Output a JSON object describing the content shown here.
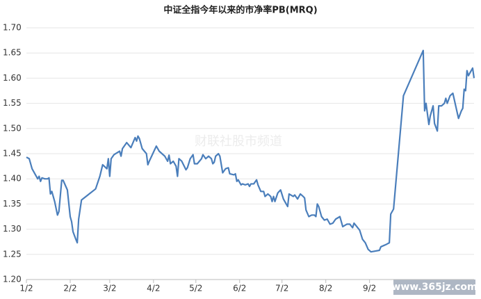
{
  "chart_data": {
    "type": "line",
    "title": "中证全指今年以来的市净率PB(MRQ)",
    "watermark": "财联社股市频道",
    "corner_watermark": "www.365jz.com",
    "x": [
      0,
      2,
      4,
      7,
      8,
      9,
      10,
      11,
      13,
      15,
      16,
      17,
      18,
      20,
      22,
      23,
      25,
      26,
      29,
      31,
      32,
      33,
      35,
      36,
      37,
      39,
      49,
      52,
      54,
      57,
      58,
      59,
      60,
      62,
      66,
      67,
      68,
      71,
      74,
      77,
      78,
      79,
      80,
      82,
      85,
      86,
      87,
      92,
      94,
      98,
      100,
      101,
      102,
      104,
      106,
      107,
      108,
      110,
      113,
      114,
      116,
      118,
      119,
      121,
      124,
      125,
      127,
      129,
      131,
      132,
      133,
      134,
      136,
      137,
      139,
      141,
      143,
      144,
      147,
      148,
      149,
      150,
      152,
      153,
      155,
      157,
      158,
      159,
      161,
      163,
      164,
      166,
      168,
      169,
      171,
      173,
      174,
      175,
      176,
      178,
      180,
      182,
      184,
      185,
      186,
      189,
      190,
      192,
      194,
      196,
      197,
      198,
      200,
      202,
      204,
      205,
      206,
      207,
      209,
      211,
      213,
      215,
      217,
      219,
      222,
      224,
      227,
      229,
      231,
      232,
      234,
      236,
      238,
      240,
      242,
      244,
      250,
      251,
      255,
      257,
      258,
      260,
      267,
      281,
      282,
      283,
      285,
      286,
      288,
      289,
      291,
      292,
      294,
      296,
      297,
      298,
      300,
      302,
      304,
      306,
      308,
      309,
      310,
      311,
      312,
      313,
      316,
      317
    ],
    "series": [
      {
        "name": "市净率PB(MRQ)",
        "color": "#4a7ebb",
        "values": [
          1.443,
          1.44,
          1.42,
          1.405,
          1.4,
          1.405,
          1.395,
          1.402,
          1.4,
          1.4,
          1.402,
          1.37,
          1.375,
          1.355,
          1.328,
          1.335,
          1.397,
          1.397,
          1.378,
          1.325,
          1.315,
          1.295,
          1.28,
          1.273,
          1.32,
          1.358,
          1.38,
          1.405,
          1.428,
          1.42,
          1.44,
          1.405,
          1.44,
          1.448,
          1.455,
          1.445,
          1.46,
          1.472,
          1.462,
          1.482,
          1.475,
          1.485,
          1.48,
          1.46,
          1.45,
          1.428,
          1.435,
          1.465,
          1.455,
          1.445,
          1.435,
          1.447,
          1.43,
          1.435,
          1.425,
          1.405,
          1.44,
          1.435,
          1.418,
          1.422,
          1.44,
          1.448,
          1.43,
          1.43,
          1.44,
          1.448,
          1.44,
          1.445,
          1.44,
          1.43,
          1.433,
          1.445,
          1.45,
          1.445,
          1.412,
          1.42,
          1.422,
          1.41,
          1.408,
          1.41,
          1.395,
          1.398,
          1.388,
          1.39,
          1.388,
          1.39,
          1.385,
          1.39,
          1.39,
          1.398,
          1.388,
          1.375,
          1.375,
          1.365,
          1.37,
          1.365,
          1.355,
          1.365,
          1.355,
          1.372,
          1.378,
          1.36,
          1.35,
          1.345,
          1.37,
          1.365,
          1.368,
          1.36,
          1.37,
          1.365,
          1.362,
          1.338,
          1.325,
          1.328,
          1.328,
          1.325,
          1.35,
          1.345,
          1.325,
          1.318,
          1.32,
          1.31,
          1.312,
          1.32,
          1.325,
          1.305,
          1.31,
          1.31,
          1.303,
          1.312,
          1.305,
          1.298,
          1.28,
          1.273,
          1.26,
          1.255,
          1.258,
          1.265,
          1.27,
          1.273,
          1.33,
          1.34,
          1.565,
          1.655,
          1.535,
          1.55,
          1.508,
          1.525,
          1.545,
          1.51,
          1.495,
          1.545,
          1.545,
          1.55,
          1.56,
          1.55,
          1.565,
          1.57,
          1.545,
          1.52,
          1.535,
          1.54,
          1.578,
          1.575,
          1.615,
          1.605,
          1.62,
          1.6
        ]
      }
    ],
    "xlim": [
      0,
      317
    ],
    "xticks": [
      {
        "value": 0,
        "label": "1/2"
      },
      {
        "value": 31,
        "label": "2/2"
      },
      {
        "value": 59,
        "label": "3/2"
      },
      {
        "value": 90,
        "label": "4/2"
      },
      {
        "value": 120,
        "label": "5/2"
      },
      {
        "value": 151,
        "label": "6/2"
      },
      {
        "value": 181,
        "label": "7/2"
      },
      {
        "value": 212,
        "label": "8/2"
      },
      {
        "value": 243,
        "label": "9/2"
      }
    ],
    "ylim": [
      1.2,
      1.7
    ],
    "yticks": [
      {
        "value": 1.2,
        "label": "1.20"
      },
      1.25,
      {
        "value": 1.3,
        "label": "1.30"
      },
      1.35,
      {
        "value": 1.4,
        "label": "1.40"
      },
      1.45,
      {
        "value": 1.5,
        "label": "1.50"
      },
      1.55,
      {
        "value": 1.6,
        "label": "1.60"
      },
      1.65,
      {
        "value": 1.7,
        "label": "1.70"
      }
    ],
    "grid": true
  }
}
